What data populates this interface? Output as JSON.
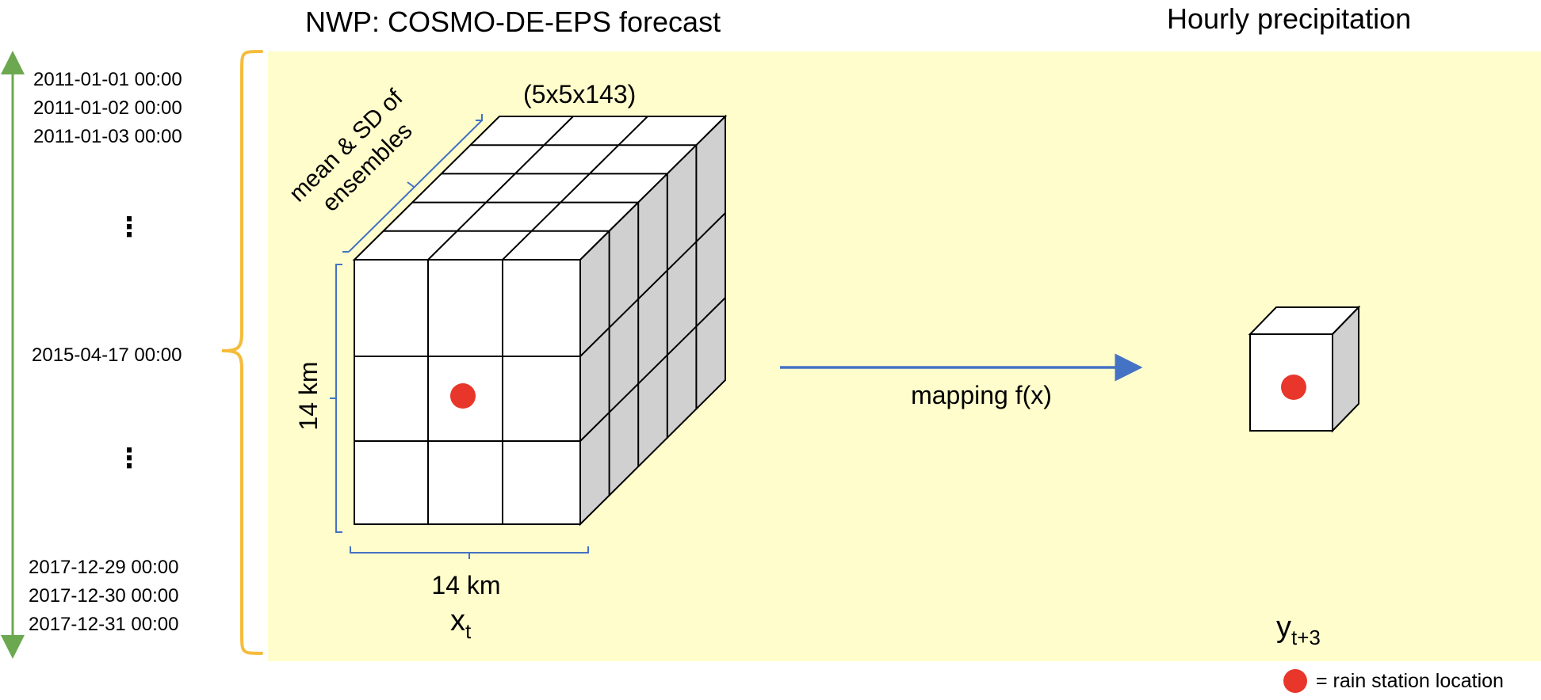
{
  "titles": {
    "left": "NWP: COSMO-DE-EPS forecast",
    "right": "Hourly precipitation"
  },
  "dates": {
    "top": [
      "2011-01-01 00:00",
      "2011-01-02 00:00",
      "2011-01-03 00:00"
    ],
    "middle": "2015-04-17 00:00",
    "bottom": [
      "2017-12-29 00:00",
      "2017-12-30 00:00",
      "2017-12-31 00:00"
    ],
    "ellipsis": "⋮"
  },
  "cube": {
    "dims": "(5x5x143)",
    "depth_label_line1": "mean & SD of",
    "depth_label_line2": "ensembles",
    "height_label": "14 km",
    "width_label": "14 km",
    "var_main": "x",
    "var_sub": "t"
  },
  "arrow": {
    "label": "mapping f(x)"
  },
  "target": {
    "var_main": "y",
    "var_sub": "t+3"
  },
  "legend": {
    "label": "= rain station location"
  },
  "colors": {
    "panel": "#FFFDCC",
    "bracket": "#F5BC3C",
    "time_arrow": "#6BA84F",
    "blue": "#4472C4",
    "dot": "#E8362B",
    "side_face": "#D0D0D0"
  }
}
